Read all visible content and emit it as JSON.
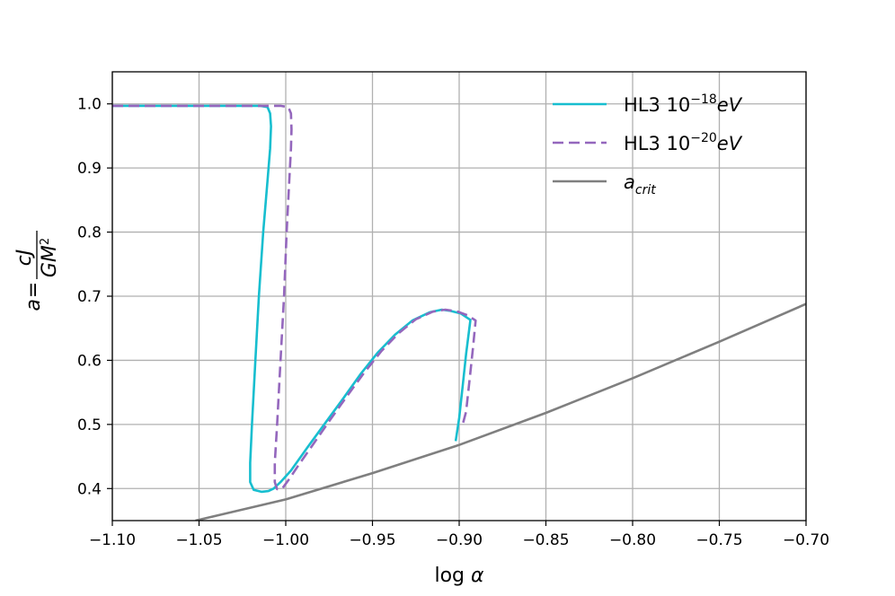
{
  "chart_data": {
    "type": "line",
    "xlabel": "log α",
    "ylabel": "a = cJ / GM²",
    "xlim": [
      -1.1,
      -0.7
    ],
    "ylim": [
      0.35,
      1.05
    ],
    "grid": true,
    "legend_position": "top-right",
    "x_ticks": [
      "−1.10",
      "−1.05",
      "−1.00",
      "−0.95",
      "−0.90",
      "−0.85",
      "−0.80",
      "−0.75",
      "−0.70"
    ],
    "x_tick_values": [
      -1.1,
      -1.05,
      -1.0,
      -0.95,
      -0.9,
      -0.85,
      -0.8,
      -0.75,
      -0.7
    ],
    "y_ticks": [
      "0.4",
      "0.5",
      "0.6",
      "0.7",
      "0.8",
      "0.9",
      "1.0"
    ],
    "y_tick_values": [
      0.4,
      0.5,
      0.6,
      0.7,
      0.8,
      0.9,
      1.0
    ],
    "series": [
      {
        "name": "HL3 10⁻¹⁸eV",
        "legend_base": "HL3 10",
        "legend_sup": "−18",
        "legend_suffix": "eV",
        "color": "#17becf",
        "style": "solid",
        "points": [
          [
            -1.1,
            0.997
          ],
          [
            -1.06,
            0.997
          ],
          [
            -1.03,
            0.997
          ],
          [
            -1.015,
            0.997
          ],
          [
            -1.0105,
            0.995
          ],
          [
            -1.009,
            0.985
          ],
          [
            -1.0085,
            0.965
          ],
          [
            -1.009,
            0.93
          ],
          [
            -1.0105,
            0.88
          ],
          [
            -1.013,
            0.8
          ],
          [
            -1.0155,
            0.7
          ],
          [
            -1.0175,
            0.6
          ],
          [
            -1.0195,
            0.5
          ],
          [
            -1.0205,
            0.44
          ],
          [
            -1.0205,
            0.41
          ],
          [
            -1.0185,
            0.398
          ],
          [
            -1.014,
            0.395
          ],
          [
            -1.01,
            0.396
          ],
          [
            -1.007,
            0.4
          ],
          [
            -1.003,
            0.41
          ],
          [
            -0.997,
            0.428
          ],
          [
            -0.987,
            0.466
          ],
          [
            -0.977,
            0.503
          ],
          [
            -0.967,
            0.54
          ],
          [
            -0.957,
            0.578
          ],
          [
            -0.947,
            0.612
          ],
          [
            -0.937,
            0.64
          ],
          [
            -0.927,
            0.662
          ],
          [
            -0.917,
            0.675
          ],
          [
            -0.91,
            0.679
          ],
          [
            -0.905,
            0.677
          ],
          [
            -0.899,
            0.673
          ],
          [
            -0.8935,
            0.663
          ],
          [
            -0.896,
            0.61
          ],
          [
            -0.898,
            0.56
          ],
          [
            -0.9,
            0.51
          ],
          [
            -0.902,
            0.474
          ]
        ]
      },
      {
        "name": "HL3 10⁻²⁰eV",
        "legend_base": "HL3 10",
        "legend_sup": "−20",
        "legend_suffix": "eV",
        "color": "#9467bd",
        "style": "dashed",
        "points": [
          [
            -1.1,
            0.997
          ],
          [
            -1.06,
            0.997
          ],
          [
            -1.03,
            0.997
          ],
          [
            -1.003,
            0.997
          ],
          [
            -0.9985,
            0.995
          ],
          [
            -0.997,
            0.985
          ],
          [
            -0.9967,
            0.96
          ],
          [
            -0.997,
            0.93
          ],
          [
            -0.998,
            0.88
          ],
          [
            -0.9995,
            0.8
          ],
          [
            -1.001,
            0.7
          ],
          [
            -1.003,
            0.6
          ],
          [
            -1.005,
            0.5
          ],
          [
            -1.0063,
            0.44
          ],
          [
            -1.0063,
            0.41
          ],
          [
            -1.005,
            0.399
          ],
          [
            -1.002,
            0.4
          ],
          [
            -0.998,
            0.415
          ],
          [
            -0.993,
            0.435
          ],
          [
            -0.985,
            0.466
          ],
          [
            -0.975,
            0.505
          ],
          [
            -0.965,
            0.543
          ],
          [
            -0.955,
            0.58
          ],
          [
            -0.945,
            0.614
          ],
          [
            -0.935,
            0.642
          ],
          [
            -0.925,
            0.664
          ],
          [
            -0.915,
            0.676
          ],
          [
            -0.908,
            0.679
          ],
          [
            -0.901,
            0.676
          ],
          [
            -0.895,
            0.67
          ],
          [
            -0.8905,
            0.662
          ],
          [
            -0.892,
            0.62
          ],
          [
            -0.894,
            0.57
          ],
          [
            -0.896,
            0.52
          ],
          [
            -0.898,
            0.5
          ]
        ]
      },
      {
        "name": "a_crit",
        "legend_base": "a",
        "legend_sub": "crit",
        "color": "#7f7f7f",
        "style": "solid",
        "points": [
          [
            -1.052,
            0.35
          ],
          [
            -1.0,
            0.383
          ],
          [
            -0.95,
            0.424
          ],
          [
            -0.9,
            0.468
          ],
          [
            -0.85,
            0.518
          ],
          [
            -0.8,
            0.572
          ],
          [
            -0.75,
            0.629
          ],
          [
            -0.7,
            0.688
          ]
        ]
      }
    ]
  }
}
